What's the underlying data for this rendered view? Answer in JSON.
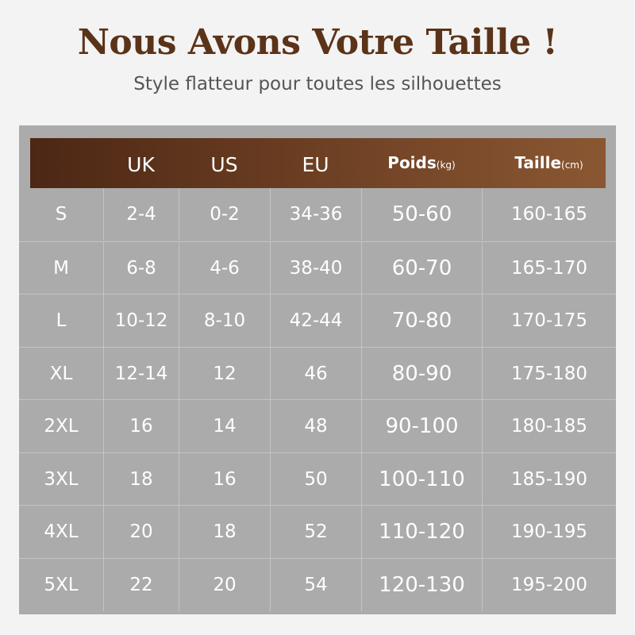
{
  "title": "Nous Avons Votre Taille !",
  "subtitle": "Style flatteur pour toutes les silhouettes",
  "colors": {
    "title": "#5b3318",
    "header_start": "#4c2714",
    "header_end": "#8a5732",
    "panel": "#ababab"
  },
  "table": {
    "headers": [
      {
        "label": "",
        "unit": ""
      },
      {
        "label": "UK",
        "unit": ""
      },
      {
        "label": "US",
        "unit": ""
      },
      {
        "label": "EU",
        "unit": ""
      },
      {
        "label": "Poids",
        "unit": "(kg)"
      },
      {
        "label": "Taille",
        "unit": "(cm)"
      }
    ],
    "rows": [
      [
        "S",
        "2-4",
        "0-2",
        "34-36",
        "50-60",
        "160-165"
      ],
      [
        "M",
        "6-8",
        "4-6",
        "38-40",
        "60-70",
        "165-170"
      ],
      [
        "L",
        "10-12",
        "8-10",
        "42-44",
        "70-80",
        "170-175"
      ],
      [
        "XL",
        "12-14",
        "12",
        "46",
        "80-90",
        "175-180"
      ],
      [
        "2XL",
        "16",
        "14",
        "48",
        "90-100",
        "180-185"
      ],
      [
        "3XL",
        "18",
        "16",
        "50",
        "100-110",
        "185-190"
      ],
      [
        "4XL",
        "20",
        "18",
        "52",
        "110-120",
        "190-195"
      ],
      [
        "5XL",
        "22",
        "20",
        "54",
        "120-130",
        "195-200"
      ]
    ]
  }
}
